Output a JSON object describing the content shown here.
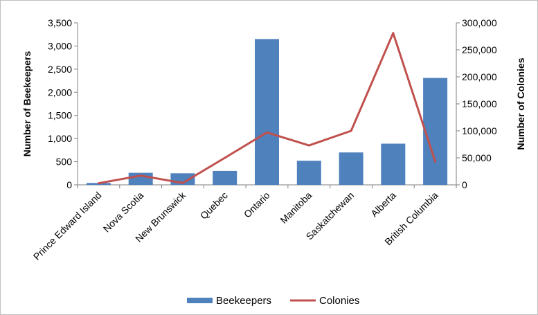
{
  "chart_data": {
    "type": "bar",
    "categories": [
      "Prince Edward Island",
      "Nova Scotia",
      "New Brunswick",
      "Quebec",
      "Ontario",
      "Manitoba",
      "Saskatchewan",
      "Alberta",
      "British Columbia"
    ],
    "series": [
      {
        "name": "Beekeepers",
        "type": "bar",
        "axis": "left",
        "color": "#4f81bd",
        "values": [
          40,
          260,
          250,
          300,
          3150,
          520,
          700,
          890,
          2310
        ]
      },
      {
        "name": "Colonies",
        "type": "line",
        "axis": "right",
        "color": "#c0504d",
        "values": [
          3000,
          17000,
          3500,
          50000,
          97000,
          73000,
          100000,
          281000,
          43000
        ]
      }
    ],
    "ylabel": "Number of Beekeepers",
    "y2label": "Number of Colonies",
    "ylim": [
      0,
      3500
    ],
    "y2lim": [
      0,
      300000
    ],
    "yticks": [
      "0",
      "500",
      "1,000",
      "1,500",
      "2,000",
      "2,500",
      "3,000",
      "3,500"
    ],
    "y2ticks": [
      "0",
      "50,000",
      "100,000",
      "150,000",
      "200,000",
      "250,000",
      "300,000"
    ],
    "grid": false,
    "legend_position": "bottom"
  }
}
